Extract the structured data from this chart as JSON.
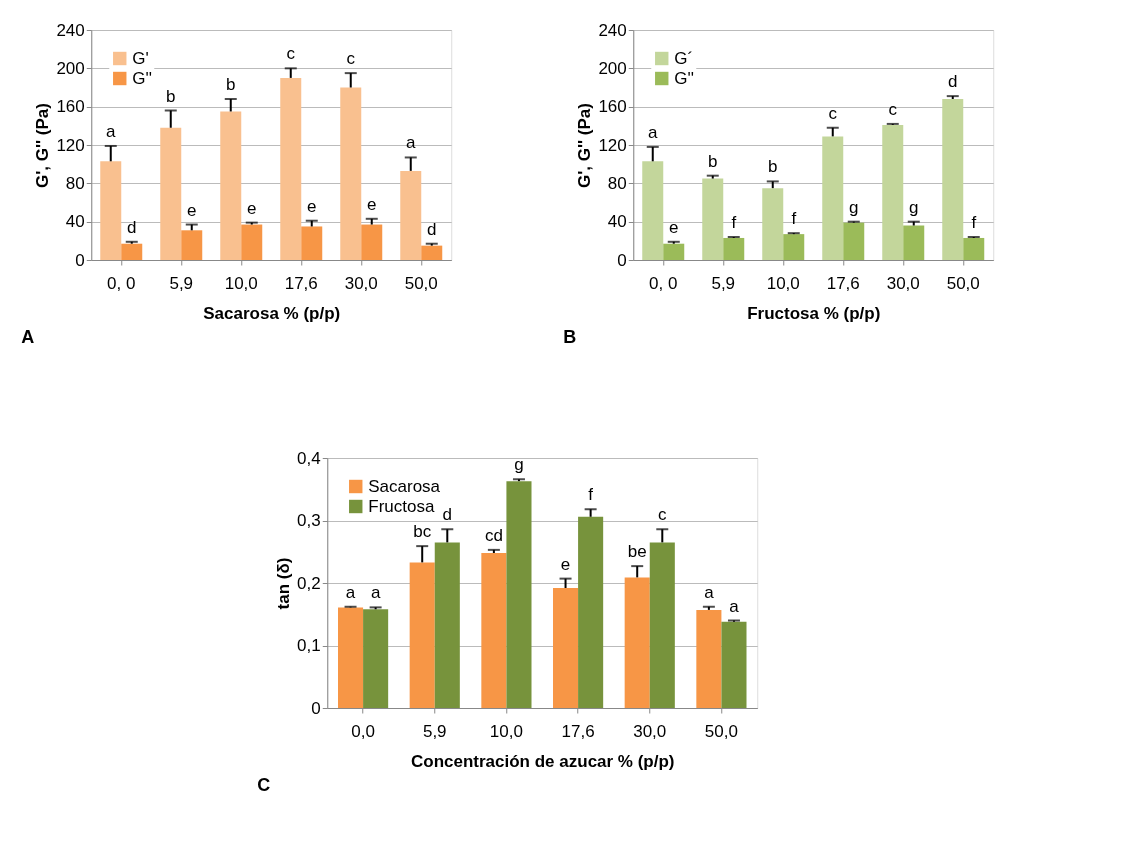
{
  "chart_data": [
    {
      "type": "bar",
      "categories": [
        "0, 0",
        "5,9",
        "10,0",
        "17,6",
        "30,0",
        "50,0"
      ],
      "xlabel": "Sacarosa % (p/p)",
      "ylabel": "G', G'' (Pa)",
      "ylim": [
        0,
        240
      ],
      "yticks": [
        0,
        40,
        80,
        120,
        160,
        200,
        240
      ],
      "grid": "y",
      "legend": "top left",
      "annotations": [
        "A"
      ],
      "series": [
        {
          "name": "G'",
          "color": "#f9c08f",
          "values": [
            103,
            138,
            155,
            190,
            180,
            93
          ],
          "errors": [
            [
              103,
              119
            ],
            [
              138,
              156
            ],
            [
              155,
              168
            ],
            [
              190,
              200
            ],
            [
              180,
              195
            ],
            [
              93,
              107
            ]
          ],
          "value_labels": [
            "a",
            "b",
            "b",
            "c",
            "c",
            "a"
          ]
        },
        {
          "name": "G''",
          "color": "#f79646",
          "values": [
            17,
            31,
            37,
            35,
            37,
            15
          ],
          "errors": [
            [
              17,
              19
            ],
            [
              31,
              37
            ],
            [
              37,
              39
            ],
            [
              35,
              41
            ],
            [
              37,
              43
            ],
            [
              15,
              17
            ]
          ],
          "value_labels": [
            "d",
            "e",
            "e",
            "e",
            "e",
            "d"
          ]
        }
      ]
    },
    {
      "type": "bar",
      "categories": [
        "0, 0",
        "5,9",
        "10,0",
        "17,6",
        "30,0",
        "50,0"
      ],
      "xlabel": "Fructosa % (p/p)",
      "ylabel": "G', G'' (Pa)",
      "ylim": [
        0,
        240
      ],
      "yticks": [
        0,
        40,
        80,
        120,
        160,
        200,
        240
      ],
      "grid": "y",
      "legend": "top left",
      "annotations": [
        "B"
      ],
      "series": [
        {
          "name": "G´",
          "color": "#c3d69b",
          "values": [
            103,
            85,
            75,
            129,
            141,
            168
          ],
          "errors": [
            [
              103,
              118
            ],
            [
              85,
              88
            ],
            [
              75,
              82
            ],
            [
              129,
              138
            ],
            [
              141,
              142
            ],
            [
              168,
              171
            ]
          ],
          "value_labels": [
            "a",
            "b",
            "b",
            "c",
            "c",
            "d"
          ]
        },
        {
          "name": "G''",
          "color": "#9bbb59",
          "values": [
            17,
            23,
            27,
            39,
            36,
            23
          ],
          "errors": [
            [
              17,
              19
            ],
            [
              23,
              24
            ],
            [
              27,
              28
            ],
            [
              39,
              40
            ],
            [
              36,
              40
            ],
            [
              23,
              24
            ]
          ],
          "value_labels": [
            "e",
            "f",
            "f",
            "g",
            "g",
            "f"
          ]
        }
      ]
    },
    {
      "type": "bar",
      "categories": [
        "0,0",
        "5,9",
        "10,0",
        "17,6",
        "30,0",
        "50,0"
      ],
      "xlabel": "Concentración de azucar % (p/p)",
      "ylabel": "tan (δ)",
      "ylim": [
        0,
        0.4
      ],
      "yticks": [
        0,
        {
          "value": 0.1,
          "label": "0,1"
        },
        {
          "value": 0.2,
          "label": "0,2"
        },
        {
          "value": 0.3,
          "label": "0,3"
        },
        {
          "value": 0.4,
          "label": "0,4"
        }
      ],
      "grid": "y",
      "legend": "top left",
      "annotations": [
        "C"
      ],
      "series": [
        {
          "name": "Sacarosa",
          "color": "#f79646",
          "values": [
            0.161,
            0.233,
            0.248,
            0.192,
            0.209,
            0.157
          ],
          "errors": [
            [
              0.161,
              0.162
            ],
            [
              0.233,
              0.259
            ],
            [
              0.248,
              0.253
            ],
            [
              0.192,
              0.207
            ],
            [
              0.209,
              0.227
            ],
            [
              0.157,
              0.162
            ]
          ],
          "value_labels": [
            "a",
            "bc",
            "cd",
            "e",
            "be",
            "a"
          ]
        },
        {
          "name": "Fructosa",
          "color": "#77933c",
          "values": [
            0.158,
            0.265,
            0.363,
            0.306,
            0.265,
            0.138
          ],
          "errors": [
            [
              0.158,
              0.161
            ],
            [
              0.265,
              0.286
            ],
            [
              0.363,
              0.366
            ],
            [
              0.306,
              0.318
            ],
            [
              0.265,
              0.286
            ],
            [
              0.138,
              0.14
            ]
          ],
          "value_labels": [
            "a",
            "d",
            "g",
            "f",
            "c",
            "a"
          ]
        }
      ]
    }
  ]
}
